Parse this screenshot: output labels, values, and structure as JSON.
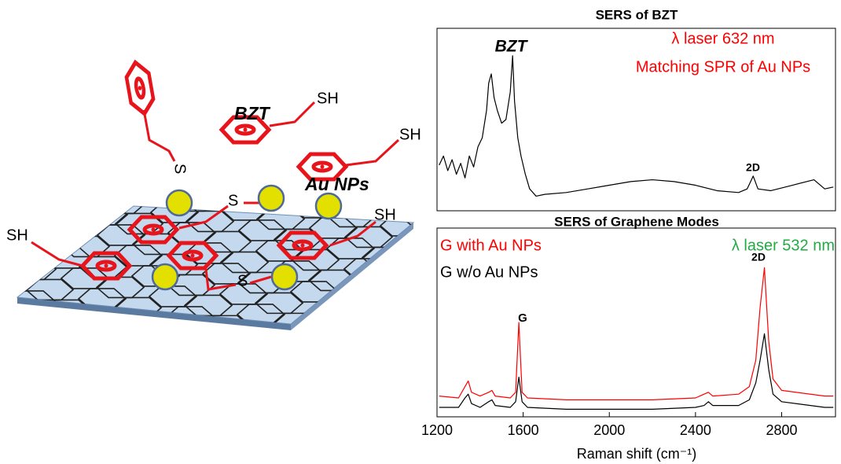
{
  "diagram": {
    "labels": [
      "BZT",
      "SH",
      "SH",
      "SH",
      "SH",
      "S",
      "S",
      "S",
      "Au NPs"
    ]
  },
  "chart_data": [
    {
      "type": "line",
      "title": "SERS of BZT",
      "annotations": [
        "BZT",
        "λ laser 632 nm",
        "Matching SPR of Au NPs",
        "2D"
      ],
      "x": [
        1210,
        1230,
        1250,
        1270,
        1290,
        1310,
        1330,
        1350,
        1370,
        1390,
        1410,
        1430,
        1440,
        1452,
        1465,
        1480,
        1500,
        1520,
        1540,
        1551,
        1560,
        1575,
        1590,
        1610,
        1630,
        1660,
        1700,
        1800,
        1900,
        2000,
        2100,
        2200,
        2300,
        2400,
        2500,
        2600,
        2640,
        2668,
        2690,
        2750,
        2850,
        2950,
        3000,
        3040
      ],
      "values": [
        25,
        30,
        22,
        28,
        20,
        26,
        18,
        30,
        24,
        35,
        40,
        55,
        70,
        75,
        62,
        55,
        48,
        50,
        65,
        85,
        60,
        40,
        30,
        20,
        12,
        8,
        9,
        10,
        12,
        14,
        16,
        17,
        16,
        14,
        11,
        10,
        12,
        19,
        12,
        11,
        14,
        17,
        12,
        13
      ],
      "color": "#000000",
      "xlim": [
        1200,
        3050
      ],
      "ylim": [
        0,
        100
      ]
    },
    {
      "type": "line",
      "title": "SERS of Graphene Modes",
      "xlabel": "Raman shift (cm⁻¹)",
      "annotations": [
        "λ laser  532 nm",
        "G",
        "2D"
      ],
      "x": [
        1210,
        1300,
        1330,
        1345,
        1360,
        1400,
        1440,
        1455,
        1470,
        1540,
        1565,
        1580,
        1595,
        1620,
        1800,
        2000,
        2200,
        2400,
        2440,
        2460,
        2480,
        2600,
        2650,
        2680,
        2700,
        2720,
        2740,
        2760,
        2800,
        3000,
        3040
      ],
      "series": [
        {
          "name": "G with Au NPs",
          "color": "#ff0000",
          "values": [
            11,
            10,
            16,
            19,
            13,
            11,
            13,
            14,
            11,
            10,
            13,
            50,
            13,
            10,
            9,
            9,
            9,
            10,
            12,
            13,
            11,
            12,
            16,
            30,
            58,
            79,
            40,
            20,
            14,
            11,
            11
          ]
        },
        {
          "name": "G w/o Au NPs",
          "color": "#000000",
          "values": [
            5,
            5,
            10,
            12,
            7,
            5,
            8,
            9,
            6,
            5,
            8,
            21,
            8,
            5,
            4,
            4,
            4,
            5,
            6,
            8,
            6,
            6,
            9,
            18,
            30,
            44,
            25,
            12,
            8,
            5,
            5
          ]
        }
      ],
      "xlim": [
        1200,
        3050
      ],
      "ylim": [
        0,
        100
      ],
      "xticks": [
        1200,
        1600,
        2000,
        2400,
        2800
      ]
    }
  ]
}
